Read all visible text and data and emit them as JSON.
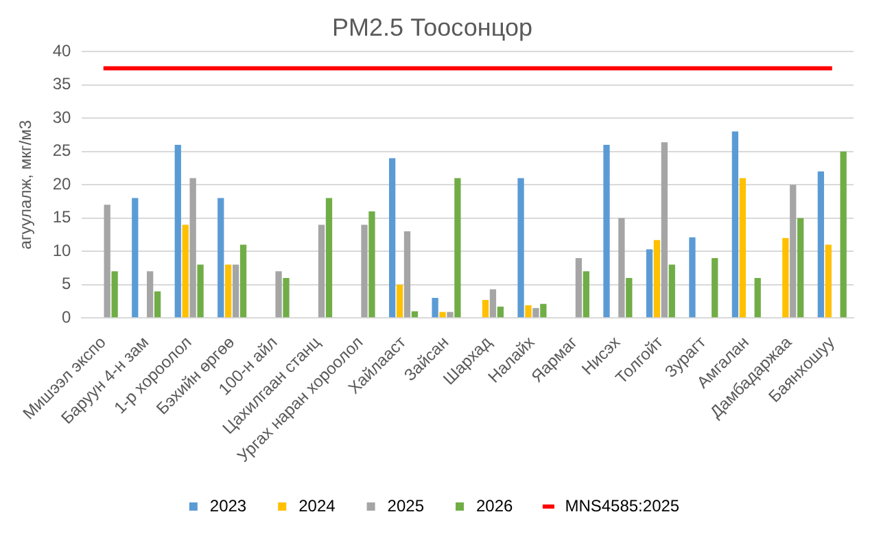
{
  "chart_data": {
    "type": "bar",
    "title": "PM2.5 Тоосонцор",
    "ylabel": "агуулалж, мкг/м3",
    "categories": [
      "Мишээл экспо",
      "Баруун 4-н зам",
      "1-р хороолол",
      "Бэхийн өргөө",
      "100-н айл",
      "Цахилгаан станц",
      "Ургах наран хороолол",
      "Хайлааст",
      "Зайсан",
      "Шархад",
      "Налайх",
      "Яармаг",
      "Нисэх",
      "Толгойт",
      "Зурагт",
      "Амгалан",
      "Дамбадаржаа",
      "Баянхошуу"
    ],
    "series": [
      {
        "name": "2023",
        "color": "#5b9bd5",
        "values": [
          null,
          18,
          26,
          18,
          null,
          null,
          null,
          24,
          3,
          null,
          21,
          null,
          26,
          10.3,
          12.1,
          28,
          null,
          22
        ]
      },
      {
        "name": "2024",
        "color": "#ffc000",
        "values": [
          null,
          null,
          14,
          8,
          null,
          null,
          null,
          5,
          0.9,
          2.7,
          1.9,
          null,
          null,
          11.7,
          null,
          21,
          12,
          11
        ]
      },
      {
        "name": "2025",
        "color": "#a5a5a5",
        "values": [
          17,
          7,
          21,
          8,
          7,
          14,
          14,
          13,
          0.9,
          4.3,
          1.5,
          9,
          15,
          26.4,
          null,
          null,
          20,
          null
        ]
      },
      {
        "name": "2026",
        "color": "#70ad47",
        "values": [
          7,
          4,
          8,
          11,
          6,
          18,
          16,
          1,
          21,
          1.7,
          2.1,
          7,
          6,
          8,
          9,
          6,
          15,
          25
        ]
      },
      {
        "name": "MNS4585:2025",
        "type": "line",
        "color": "#ff0000",
        "values": [
          37.5,
          37.5,
          37.5,
          37.5,
          37.5,
          37.5,
          37.5,
          37.5,
          37.5,
          37.5,
          37.5,
          37.5,
          37.5,
          37.5,
          37.5,
          37.5,
          37.5,
          37.5
        ]
      }
    ],
    "ylim": [
      0,
      40
    ],
    "yticks": [
      0,
      5,
      10,
      15,
      20,
      25,
      30,
      35,
      40
    ],
    "grid": "y",
    "legend": "bottom",
    "marker": "none",
    "line_style": "solid"
  }
}
